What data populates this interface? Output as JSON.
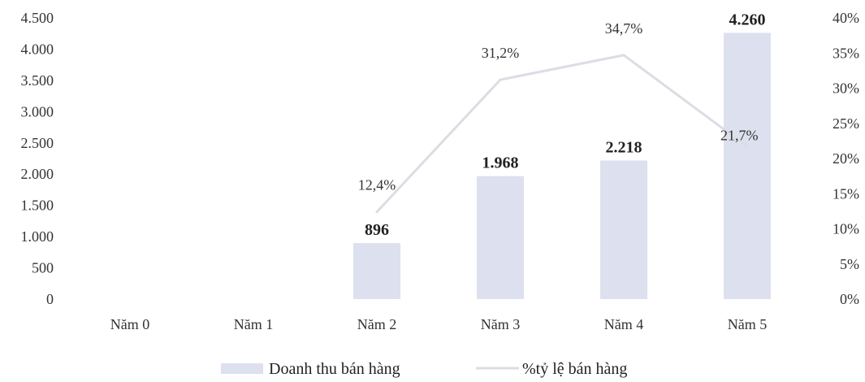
{
  "chart_data": {
    "type": "bar",
    "categories": [
      "Năm 0",
      "Năm 1",
      "Năm 2",
      "Năm 3",
      "Năm 4",
      "Năm 5"
    ],
    "series": [
      {
        "name": "Doanh thu bán hàng",
        "type": "bar",
        "axis": "left",
        "values": [
          0,
          0,
          896,
          1968,
          2218,
          4260
        ],
        "labels": [
          "",
          "",
          "896",
          "1.968",
          "2.218",
          "4.260"
        ]
      },
      {
        "name": "%tỷ lệ bán hàng",
        "type": "line",
        "axis": "right",
        "values": [
          null,
          null,
          12.4,
          31.2,
          34.7,
          21.7
        ],
        "labels": [
          "",
          "",
          "12,4%",
          "31,2%",
          "34,7%",
          "21,7%"
        ]
      }
    ],
    "y_left": {
      "ylim": [
        0,
        4500
      ],
      "ticks": [
        0,
        500,
        1000,
        1500,
        2000,
        2500,
        3000,
        3500,
        4000,
        4500
      ],
      "tick_labels": [
        "0",
        "500",
        "1.000",
        "1.500",
        "2.000",
        "2.500",
        "3.000",
        "3.500",
        "4.000",
        "4.500"
      ]
    },
    "y_right": {
      "ylim": [
        0,
        40
      ],
      "ticks": [
        0,
        5,
        10,
        15,
        20,
        25,
        30,
        35,
        40
      ],
      "tick_labels": [
        "0%",
        "5%",
        "10%",
        "15%",
        "20%",
        "25%",
        "30%",
        "35%",
        "40%"
      ]
    },
    "grid": false,
    "legend_position": "bottom",
    "colors": {
      "bar": "#dde0ee",
      "line": "#dcdde4",
      "text": "#222222"
    }
  }
}
